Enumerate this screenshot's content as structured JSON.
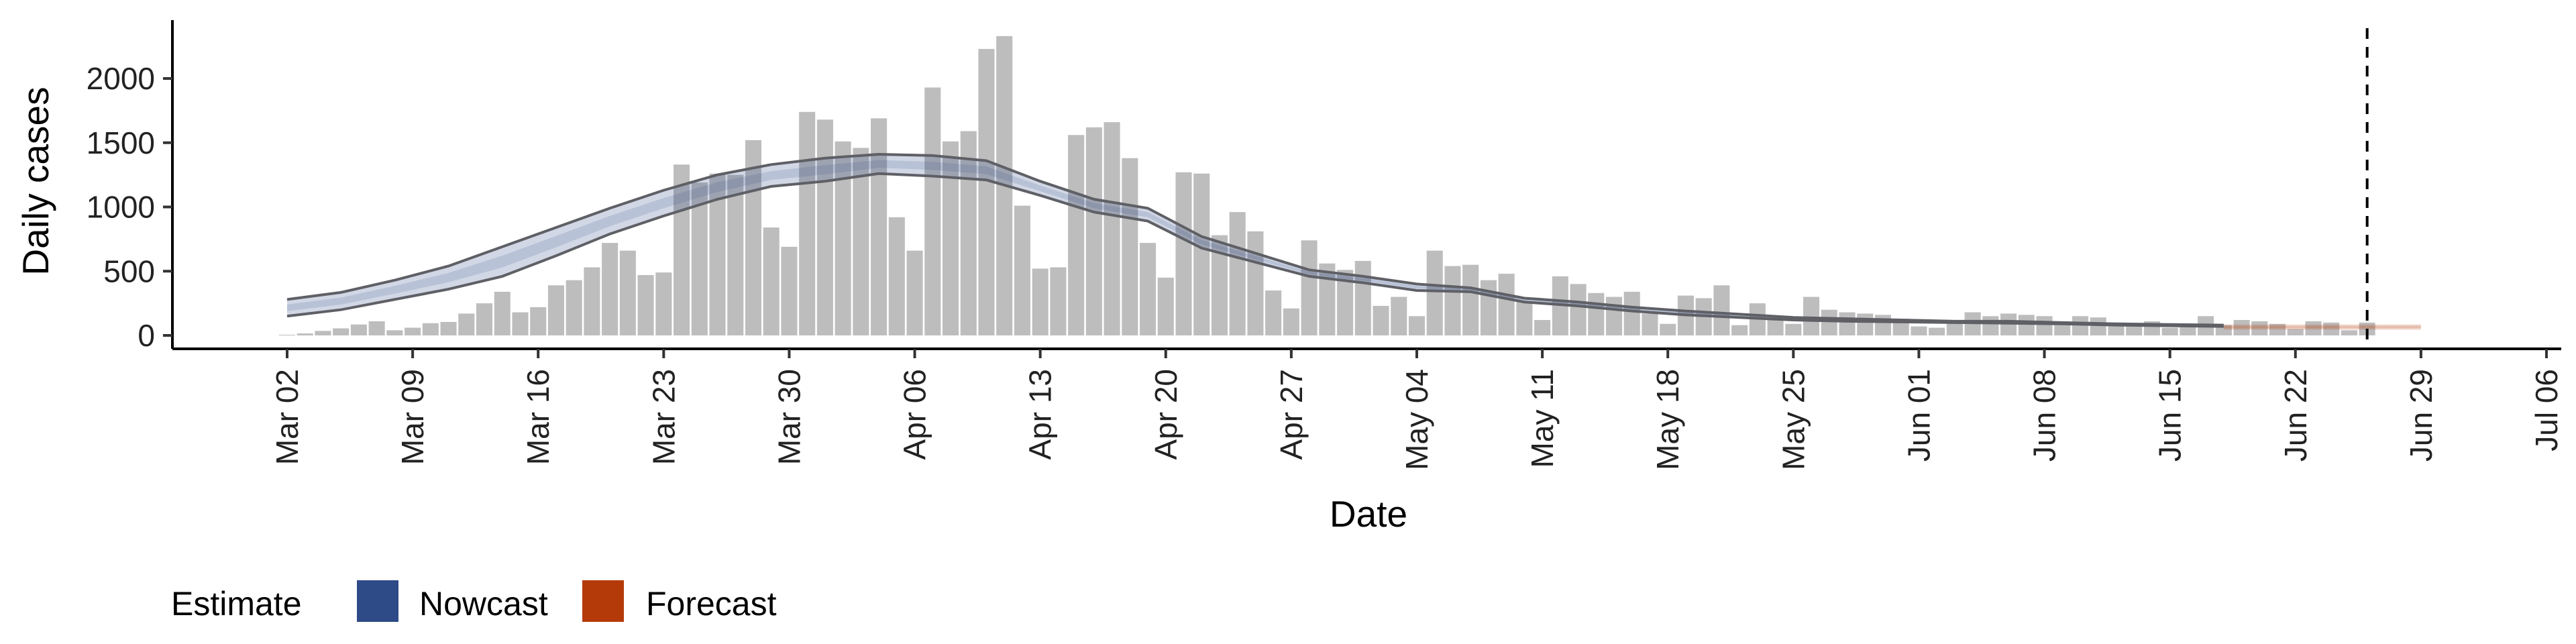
{
  "chart_data": {
    "type": "bar",
    "xlabel": "Date",
    "ylabel": "Daily cases",
    "x_start": "2020-03-02",
    "ylim": [
      -100,
      2450
    ],
    "y_ticks": [
      0,
      500,
      1000,
      1500,
      2000
    ],
    "x_ticks": [
      "Mar 02",
      "Mar 09",
      "Mar 16",
      "Mar 23",
      "Mar 30",
      "Apr 06",
      "Apr 13",
      "Apr 20",
      "Apr 27",
      "May 04",
      "May 11",
      "May 18",
      "May 25",
      "Jun 01",
      "Jun 08",
      "Jun 15",
      "Jun 22",
      "Jun 29",
      "Jul 06"
    ],
    "cutoff_date": "Jun 26",
    "grid": false,
    "bar_color": "#bdbdbd",
    "daily_cases": [
      5,
      15,
      35,
      55,
      85,
      110,
      40,
      60,
      95,
      105,
      170,
      250,
      340,
      180,
      220,
      390,
      430,
      530,
      720,
      660,
      470,
      490,
      1330,
      1190,
      1260,
      1250,
      1520,
      840,
      690,
      1740,
      1680,
      1510,
      1460,
      1690,
      920,
      660,
      1930,
      1510,
      1590,
      2230,
      2330,
      1010,
      520,
      530,
      1560,
      1620,
      1660,
      1380,
      720,
      450,
      1270,
      1260,
      780,
      960,
      810,
      350,
      210,
      740,
      560,
      510,
      580,
      230,
      300,
      150,
      660,
      540,
      550,
      430,
      480,
      260,
      120,
      460,
      400,
      330,
      300,
      340,
      170,
      90,
      310,
      290,
      390,
      80,
      250,
      140,
      90,
      300,
      200,
      180,
      170,
      160,
      130,
      70,
      60,
      100,
      180,
      150,
      170,
      160,
      150,
      100,
      150,
      140,
      100,
      90,
      110,
      60,
      90,
      150,
      80,
      120,
      110,
      90,
      50,
      110,
      100,
      40,
      100
    ],
    "series": [
      {
        "name": "Nowcast",
        "color": "#2e4a87",
        "upper": [
          280,
          335,
          430,
          540,
          690,
          840,
          990,
          1130,
          1250,
          1330,
          1380,
          1410,
          1400,
          1360,
          1200,
          1060,
          990,
          770,
          640,
          510,
          460,
          400,
          370,
          290,
          260,
          220,
          190,
          165,
          140,
          130,
          120,
          110,
          110,
          100,
          90,
          85,
          80
        ],
        "lower": [
          150,
          200,
          280,
          360,
          460,
          620,
          790,
          930,
          1060,
          1160,
          1200,
          1260,
          1240,
          1210,
          1090,
          960,
          890,
          680,
          570,
          460,
          410,
          350,
          340,
          260,
          230,
          190,
          160,
          140,
          120,
          110,
          105,
          100,
          95,
          90,
          80,
          75,
          70
        ]
      },
      {
        "name": "Forecast",
        "color": "#b53a0a",
        "upper": [
          85,
          85,
          85
        ],
        "lower": [
          45,
          45,
          45
        ]
      }
    ],
    "legend": {
      "title": "Estimate",
      "position": "bottom-left",
      "items": [
        {
          "label": "Nowcast",
          "color": "#2e4a87"
        },
        {
          "label": "Forecast",
          "color": "#b53a0a"
        }
      ]
    }
  }
}
